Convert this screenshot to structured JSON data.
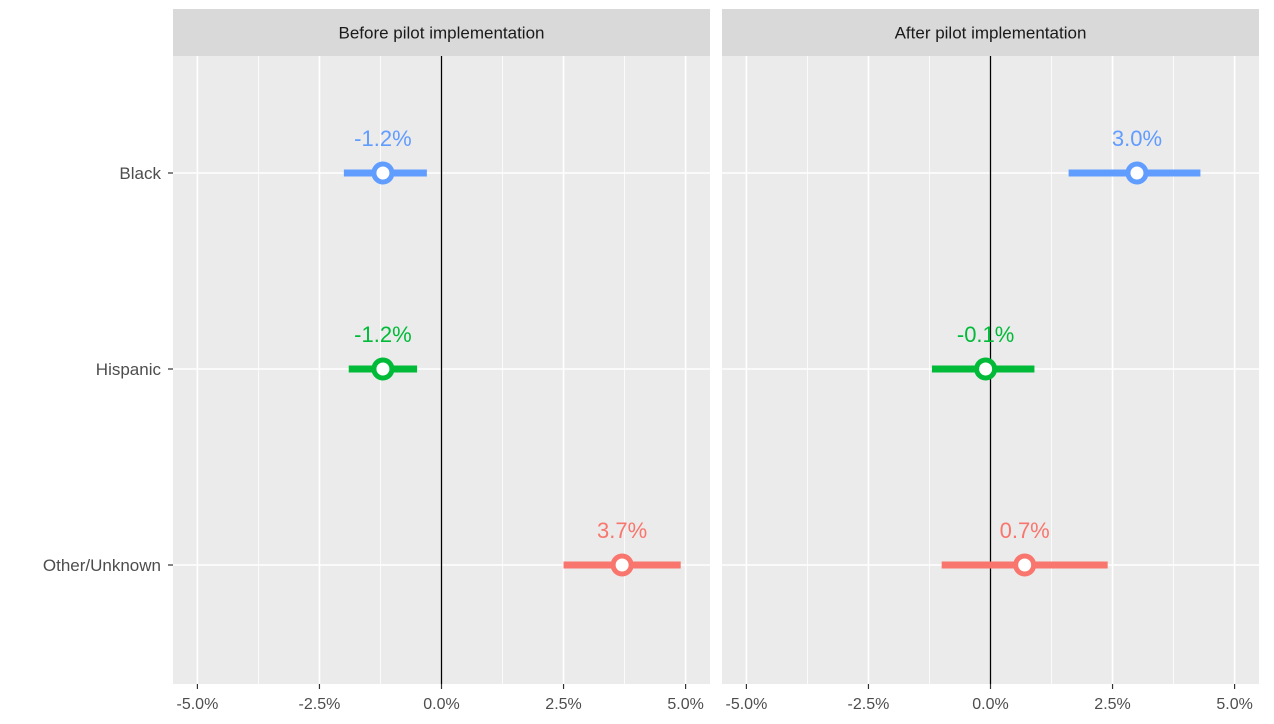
{
  "chart_data": {
    "type": "forest-dot",
    "categories": [
      "Black",
      "Hispanic",
      "Other/Unknown"
    ],
    "series_colors": {
      "Black": "#619CFF",
      "Hispanic": "#00BA38",
      "Other/Unknown": "#F8766D"
    },
    "x_tick_labels": [
      "-5.0%",
      "-2.5%",
      "0.0%",
      "2.5%",
      "5.0%"
    ],
    "x_ticks": [
      -5.0,
      -2.5,
      0.0,
      2.5,
      5.0
    ],
    "xlim": [
      -5.5,
      5.5
    ],
    "reference_line": 0.0,
    "grid": true,
    "panels": [
      {
        "title": "Before pilot implementation",
        "points": [
          {
            "category": "Black",
            "estimate": -1.2,
            "low": -2.0,
            "high": -0.3,
            "label": "-1.2%"
          },
          {
            "category": "Hispanic",
            "estimate": -1.2,
            "low": -1.9,
            "high": -0.5,
            "label": "-1.2%"
          },
          {
            "category": "Other/Unknown",
            "estimate": 3.7,
            "low": 2.5,
            "high": 4.9,
            "label": "3.7%"
          }
        ]
      },
      {
        "title": "After pilot implementation",
        "points": [
          {
            "category": "Black",
            "estimate": 3.0,
            "low": 1.6,
            "high": 4.3,
            "label": "3.0%"
          },
          {
            "category": "Hispanic",
            "estimate": -0.1,
            "low": -1.2,
            "high": 0.9,
            "label": "-0.1%"
          },
          {
            "category": "Other/Unknown",
            "estimate": 0.7,
            "low": -1.0,
            "high": 2.4,
            "label": "0.7%"
          }
        ]
      }
    ]
  }
}
